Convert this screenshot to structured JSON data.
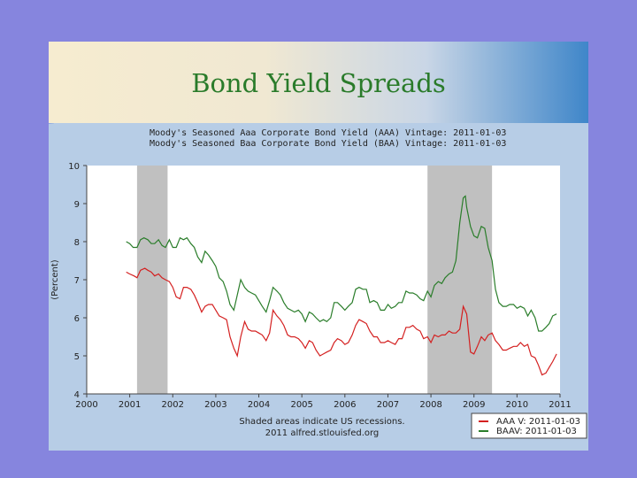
{
  "slide": {
    "title": "Bond Yield Spreads"
  },
  "chart_data": {
    "type": "line",
    "title_lines": [
      "Moody's Seasoned Aaa Corporate Bond Yield (AAA) Vintage: 2011-01-03",
      "Moody's Seasoned Baa Corporate Bond Yield (BAA) Vintage: 2011-01-03"
    ],
    "ylabel": "(Percent)",
    "xlim": [
      2000,
      2011
    ],
    "ylim": [
      4,
      10
    ],
    "x_ticks": [
      "2000",
      "2001",
      "2002",
      "2003",
      "2004",
      "2005",
      "2006",
      "2007",
      "2008",
      "2009",
      "2010",
      "2011"
    ],
    "y_ticks": [
      "4",
      "5",
      "6",
      "7",
      "8",
      "9",
      "10"
    ],
    "recessions": [
      [
        2001.17,
        2001.88
      ],
      [
        2007.92,
        2009.42
      ]
    ],
    "footnote_lines": [
      "Shaded areas indicate US recessions.",
      "2011 alfred.stlouisfed.org"
    ],
    "legend_position": "bottom-right",
    "series": [
      {
        "name": "AAA V: 2011-01-03",
        "color": "#d42020",
        "points": [
          [
            2000.92,
            7.2
          ],
          [
            2001.0,
            7.15
          ],
          [
            2001.1,
            7.1
          ],
          [
            2001.17,
            7.05
          ],
          [
            2001.25,
            7.25
          ],
          [
            2001.35,
            7.3
          ],
          [
            2001.42,
            7.25
          ],
          [
            2001.5,
            7.2
          ],
          [
            2001.58,
            7.1
          ],
          [
            2001.67,
            7.15
          ],
          [
            2001.75,
            7.05
          ],
          [
            2001.83,
            7.0
          ],
          [
            2001.92,
            6.95
          ],
          [
            2002.0,
            6.8
          ],
          [
            2002.08,
            6.55
          ],
          [
            2002.17,
            6.5
          ],
          [
            2002.25,
            6.8
          ],
          [
            2002.33,
            6.8
          ],
          [
            2002.42,
            6.75
          ],
          [
            2002.5,
            6.6
          ],
          [
            2002.58,
            6.4
          ],
          [
            2002.67,
            6.15
          ],
          [
            2002.75,
            6.3
          ],
          [
            2002.83,
            6.35
          ],
          [
            2002.92,
            6.35
          ],
          [
            2003.0,
            6.2
          ],
          [
            2003.08,
            6.05
          ],
          [
            2003.17,
            6.0
          ],
          [
            2003.25,
            5.95
          ],
          [
            2003.33,
            5.5
          ],
          [
            2003.42,
            5.2
          ],
          [
            2003.5,
            5.0
          ],
          [
            2003.58,
            5.5
          ],
          [
            2003.67,
            5.9
          ],
          [
            2003.75,
            5.7
          ],
          [
            2003.83,
            5.65
          ],
          [
            2003.92,
            5.65
          ],
          [
            2004.0,
            5.6
          ],
          [
            2004.08,
            5.55
          ],
          [
            2004.17,
            5.4
          ],
          [
            2004.25,
            5.6
          ],
          [
            2004.33,
            6.2
          ],
          [
            2004.42,
            6.05
          ],
          [
            2004.5,
            5.95
          ],
          [
            2004.58,
            5.8
          ],
          [
            2004.67,
            5.55
          ],
          [
            2004.75,
            5.5
          ],
          [
            2004.83,
            5.5
          ],
          [
            2004.92,
            5.45
          ],
          [
            2005.0,
            5.35
          ],
          [
            2005.08,
            5.2
          ],
          [
            2005.17,
            5.4
          ],
          [
            2005.25,
            5.35
          ],
          [
            2005.33,
            5.15
          ],
          [
            2005.42,
            5.0
          ],
          [
            2005.5,
            5.05
          ],
          [
            2005.58,
            5.1
          ],
          [
            2005.67,
            5.15
          ],
          [
            2005.75,
            5.35
          ],
          [
            2005.83,
            5.45
          ],
          [
            2005.92,
            5.4
          ],
          [
            2006.0,
            5.3
          ],
          [
            2006.08,
            5.35
          ],
          [
            2006.17,
            5.55
          ],
          [
            2006.25,
            5.8
          ],
          [
            2006.33,
            5.95
          ],
          [
            2006.42,
            5.9
          ],
          [
            2006.5,
            5.85
          ],
          [
            2006.58,
            5.65
          ],
          [
            2006.67,
            5.5
          ],
          [
            2006.75,
            5.5
          ],
          [
            2006.83,
            5.35
          ],
          [
            2006.92,
            5.35
          ],
          [
            2007.0,
            5.4
          ],
          [
            2007.08,
            5.35
          ],
          [
            2007.17,
            5.3
          ],
          [
            2007.25,
            5.45
          ],
          [
            2007.33,
            5.45
          ],
          [
            2007.42,
            5.75
          ],
          [
            2007.5,
            5.75
          ],
          [
            2007.58,
            5.8
          ],
          [
            2007.67,
            5.7
          ],
          [
            2007.75,
            5.65
          ],
          [
            2007.83,
            5.45
          ],
          [
            2007.92,
            5.5
          ],
          [
            2008.0,
            5.35
          ],
          [
            2008.08,
            5.55
          ],
          [
            2008.17,
            5.5
          ],
          [
            2008.25,
            5.55
          ],
          [
            2008.33,
            5.55
          ],
          [
            2008.42,
            5.65
          ],
          [
            2008.5,
            5.6
          ],
          [
            2008.58,
            5.6
          ],
          [
            2008.67,
            5.7
          ],
          [
            2008.75,
            6.3
          ],
          [
            2008.83,
            6.1
          ],
          [
            2008.92,
            5.1
          ],
          [
            2009.0,
            5.05
          ],
          [
            2009.08,
            5.25
          ],
          [
            2009.17,
            5.5
          ],
          [
            2009.25,
            5.4
          ],
          [
            2009.33,
            5.55
          ],
          [
            2009.42,
            5.6
          ],
          [
            2009.5,
            5.4
          ],
          [
            2009.58,
            5.3
          ],
          [
            2009.67,
            5.15
          ],
          [
            2009.75,
            5.15
          ],
          [
            2009.83,
            5.2
          ],
          [
            2009.92,
            5.25
          ],
          [
            2010.0,
            5.25
          ],
          [
            2010.08,
            5.35
          ],
          [
            2010.17,
            5.25
          ],
          [
            2010.25,
            5.3
          ],
          [
            2010.33,
            5.0
          ],
          [
            2010.42,
            4.95
          ],
          [
            2010.5,
            4.75
          ],
          [
            2010.58,
            4.5
          ],
          [
            2010.67,
            4.55
          ],
          [
            2010.75,
            4.7
          ],
          [
            2010.83,
            4.85
          ],
          [
            2010.92,
            5.05
          ]
        ]
      },
      {
        "name": "BAAV: 2011-01-03",
        "color": "#2a7d2a",
        "points": [
          [
            2000.92,
            8.0
          ],
          [
            2001.0,
            7.95
          ],
          [
            2001.08,
            7.85
          ],
          [
            2001.17,
            7.85
          ],
          [
            2001.25,
            8.05
          ],
          [
            2001.33,
            8.1
          ],
          [
            2001.42,
            8.05
          ],
          [
            2001.5,
            7.95
          ],
          [
            2001.58,
            7.95
          ],
          [
            2001.67,
            8.05
          ],
          [
            2001.75,
            7.9
          ],
          [
            2001.83,
            7.85
          ],
          [
            2001.92,
            8.05
          ],
          [
            2002.0,
            7.85
          ],
          [
            2002.08,
            7.85
          ],
          [
            2002.17,
            8.1
          ],
          [
            2002.25,
            8.05
          ],
          [
            2002.33,
            8.1
          ],
          [
            2002.42,
            7.95
          ],
          [
            2002.5,
            7.85
          ],
          [
            2002.58,
            7.6
          ],
          [
            2002.67,
            7.45
          ],
          [
            2002.75,
            7.75
          ],
          [
            2002.83,
            7.65
          ],
          [
            2002.92,
            7.5
          ],
          [
            2003.0,
            7.35
          ],
          [
            2003.08,
            7.05
          ],
          [
            2003.17,
            6.95
          ],
          [
            2003.25,
            6.7
          ],
          [
            2003.33,
            6.35
          ],
          [
            2003.42,
            6.2
          ],
          [
            2003.5,
            6.6
          ],
          [
            2003.58,
            7.0
          ],
          [
            2003.67,
            6.8
          ],
          [
            2003.75,
            6.7
          ],
          [
            2003.83,
            6.65
          ],
          [
            2003.92,
            6.6
          ],
          [
            2004.0,
            6.45
          ],
          [
            2004.08,
            6.3
          ],
          [
            2004.17,
            6.15
          ],
          [
            2004.25,
            6.45
          ],
          [
            2004.33,
            6.8
          ],
          [
            2004.42,
            6.7
          ],
          [
            2004.5,
            6.6
          ],
          [
            2004.58,
            6.4
          ],
          [
            2004.67,
            6.25
          ],
          [
            2004.75,
            6.2
          ],
          [
            2004.83,
            6.15
          ],
          [
            2004.92,
            6.2
          ],
          [
            2005.0,
            6.1
          ],
          [
            2005.08,
            5.9
          ],
          [
            2005.17,
            6.15
          ],
          [
            2005.25,
            6.1
          ],
          [
            2005.33,
            6.0
          ],
          [
            2005.42,
            5.9
          ],
          [
            2005.5,
            5.95
          ],
          [
            2005.58,
            5.9
          ],
          [
            2005.67,
            6.0
          ],
          [
            2005.75,
            6.4
          ],
          [
            2005.83,
            6.4
          ],
          [
            2005.92,
            6.3
          ],
          [
            2006.0,
            6.2
          ],
          [
            2006.08,
            6.3
          ],
          [
            2006.17,
            6.4
          ],
          [
            2006.25,
            6.75
          ],
          [
            2006.33,
            6.8
          ],
          [
            2006.42,
            6.75
          ],
          [
            2006.5,
            6.75
          ],
          [
            2006.58,
            6.4
          ],
          [
            2006.67,
            6.45
          ],
          [
            2006.75,
            6.4
          ],
          [
            2006.83,
            6.2
          ],
          [
            2006.92,
            6.2
          ],
          [
            2007.0,
            6.35
          ],
          [
            2007.08,
            6.25
          ],
          [
            2007.17,
            6.3
          ],
          [
            2007.25,
            6.4
          ],
          [
            2007.33,
            6.4
          ],
          [
            2007.42,
            6.7
          ],
          [
            2007.5,
            6.65
          ],
          [
            2007.58,
            6.65
          ],
          [
            2007.67,
            6.6
          ],
          [
            2007.75,
            6.5
          ],
          [
            2007.83,
            6.45
          ],
          [
            2007.92,
            6.7
          ],
          [
            2008.0,
            6.55
          ],
          [
            2008.08,
            6.85
          ],
          [
            2008.17,
            6.95
          ],
          [
            2008.25,
            6.9
          ],
          [
            2008.33,
            7.05
          ],
          [
            2008.42,
            7.15
          ],
          [
            2008.5,
            7.2
          ],
          [
            2008.58,
            7.5
          ],
          [
            2008.67,
            8.5
          ],
          [
            2008.75,
            9.15
          ],
          [
            2008.8,
            9.2
          ],
          [
            2008.83,
            8.9
          ],
          [
            2008.92,
            8.4
          ],
          [
            2009.0,
            8.15
          ],
          [
            2009.08,
            8.1
          ],
          [
            2009.17,
            8.4
          ],
          [
            2009.25,
            8.35
          ],
          [
            2009.33,
            7.85
          ],
          [
            2009.42,
            7.5
          ],
          [
            2009.5,
            6.75
          ],
          [
            2009.58,
            6.4
          ],
          [
            2009.67,
            6.3
          ],
          [
            2009.75,
            6.3
          ],
          [
            2009.83,
            6.35
          ],
          [
            2009.92,
            6.35
          ],
          [
            2010.0,
            6.25
          ],
          [
            2010.08,
            6.3
          ],
          [
            2010.17,
            6.25
          ],
          [
            2010.25,
            6.05
          ],
          [
            2010.33,
            6.2
          ],
          [
            2010.42,
            6.0
          ],
          [
            2010.5,
            5.65
          ],
          [
            2010.58,
            5.65
          ],
          [
            2010.67,
            5.75
          ],
          [
            2010.75,
            5.85
          ],
          [
            2010.83,
            6.05
          ],
          [
            2010.92,
            6.1
          ]
        ]
      }
    ]
  }
}
